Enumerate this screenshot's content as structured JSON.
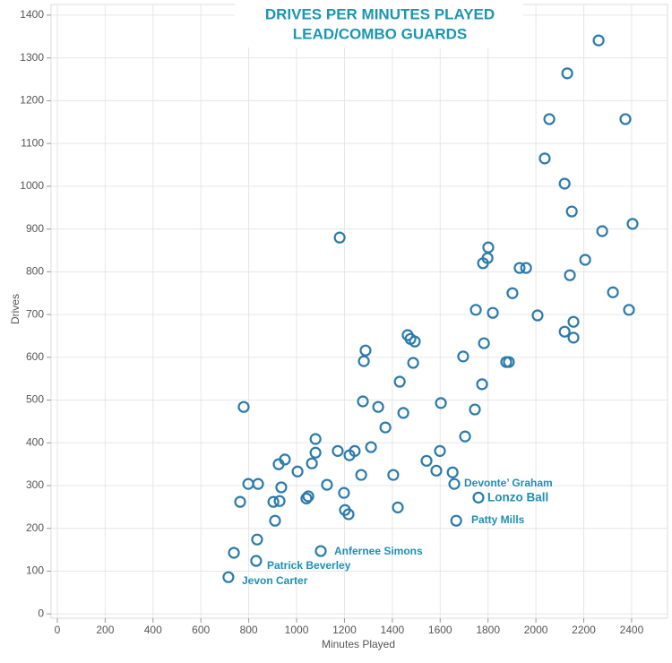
{
  "chart_data": {
    "type": "scatter",
    "title": "DRIVES PER MINUTES PLAYED",
    "subtitle": "LEAD/COMBO GUARDS",
    "x_label": "Minutes Played",
    "y_label": "Drives",
    "color": "#2b7bab",
    "grid": true,
    "xlim": [
      -26,
      2550
    ],
    "ylim": [
      -10,
      1425
    ],
    "xticks": [
      0,
      200,
      400,
      600,
      800,
      1000,
      1200,
      1400,
      1600,
      1800,
      2000,
      2200,
      2400
    ],
    "yticks": [
      0,
      100,
      200,
      300,
      400,
      500,
      600,
      700,
      800,
      900,
      1000,
      1100,
      1200,
      1300,
      1400
    ],
    "x": [
      715,
      738,
      831,
      835,
      764,
      779,
      798,
      839,
      903,
      910,
      925,
      929,
      936,
      951,
      1004,
      1064,
      1041,
      1049,
      1079,
      1079,
      1101,
      1127,
      1172,
      1198,
      1202,
      1217,
      1221,
      1243,
      1180,
      1270,
      1277,
      1281,
      1288,
      1311,
      1341,
      1371,
      1404,
      1423,
      1431,
      1446,
      1464,
      1476,
      1487,
      1494,
      1543,
      1584,
      1599,
      1603,
      1652,
      1659,
      1667,
      1696,
      1704,
      1749,
      1760,
      1745,
      1775,
      1779,
      1783,
      1801,
      1798,
      1820,
      1876,
      1887,
      1932,
      1959,
      2007,
      2037,
      2056,
      2120,
      2131,
      2142,
      2150,
      2157,
      2157,
      2120,
      2206,
      2262,
      2277,
      2322,
      2374,
      2389,
      2404,
      1902
    ],
    "values": [
      86,
      143,
      124,
      174,
      262,
      484,
      304,
      304,
      262,
      218,
      350,
      264,
      296,
      361,
      333,
      352,
      270,
      275,
      409,
      377,
      147,
      302,
      381,
      283,
      243,
      233,
      371,
      381,
      880,
      325,
      497,
      591,
      616,
      390,
      484,
      436,
      325,
      249,
      543,
      470,
      652,
      643,
      587,
      637,
      358,
      335,
      381,
      493,
      331,
      304,
      218,
      602,
      415,
      711,
      272,
      478,
      537,
      820,
      633,
      857,
      832,
      704,
      589,
      589,
      809,
      809,
      698,
      1065,
      1157,
      1006,
      1264,
      792,
      941,
      683,
      646,
      660,
      828,
      1341,
      895,
      752,
      1157,
      711,
      912,
      750
    ],
    "annotations": [
      "Jevon Carter",
      "Patrick Beverley",
      "Anfernee Simons",
      "Devonte’ Graham",
      "Lonzo Ball",
      "Patty Mills"
    ],
    "annotation_color": "#1f8fb3"
  }
}
